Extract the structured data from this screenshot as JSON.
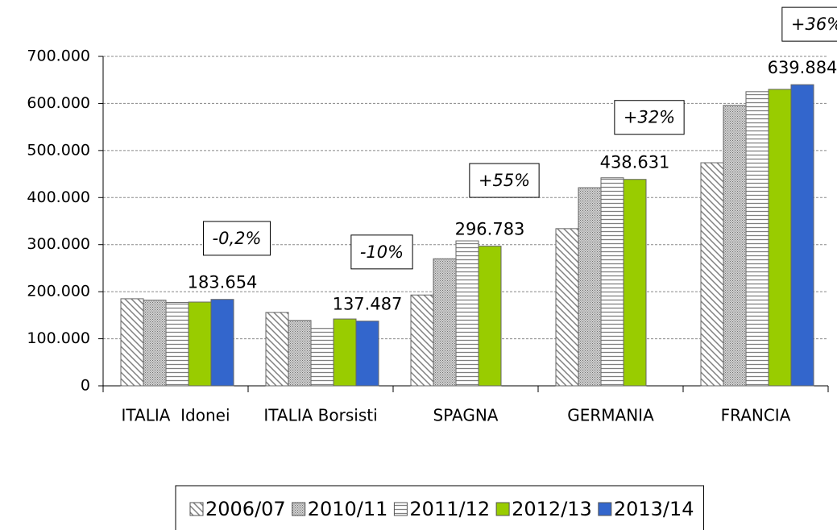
{
  "chart_data": {
    "type": "bar",
    "categories": [
      "ITALIA  Idonei",
      "ITALIA Borsisti",
      "SPAGNA",
      "GERMANIA",
      "FRANCIA"
    ],
    "series": [
      {
        "name": "2006/07",
        "color": "#808080",
        "pattern": "diagonal",
        "values": [
          185000,
          156000,
          193000,
          334000,
          474000
        ]
      },
      {
        "name": "2010/11",
        "color": "#808080",
        "pattern": "dots",
        "values": [
          182000,
          139000,
          270000,
          421000,
          596000
        ]
      },
      {
        "name": "2011/12",
        "color": "#808080",
        "pattern": "horizontal",
        "values": [
          177000,
          122000,
          308000,
          442000,
          625000
        ]
      },
      {
        "name": "2012/13",
        "color": "#99cc00",
        "pattern": "solid",
        "values": [
          178000,
          142000,
          296783,
          438631,
          630000
        ],
        "value_labels": [
          null,
          null,
          "296.783",
          "438.631",
          null
        ]
      },
      {
        "name": "2013/14",
        "color": "#3366cc",
        "pattern": "solid",
        "values": [
          183654,
          137487,
          null,
          null,
          639884
        ],
        "value_labels": [
          "183.654",
          "137.487",
          null,
          null,
          "639.884"
        ]
      }
    ],
    "annotations": [
      "-0,2%",
      "-10%",
      "+55%",
      "+32%",
      "+36%"
    ],
    "ylim": [
      0,
      700000
    ],
    "yticks": [
      0,
      {
        "value": 100000,
        "label": "100.000"
      },
      {
        "value": 200000,
        "label": "200.000"
      },
      {
        "value": 300000,
        "label": "300.000"
      },
      {
        "value": 400000,
        "label": "400.000"
      },
      {
        "value": 500000,
        "label": "500.000"
      },
      {
        "value": 600000,
        "label": "600.000"
      },
      {
        "value": 700000,
        "label": "700.000"
      }
    ],
    "grid": true,
    "legend": "bottom"
  }
}
